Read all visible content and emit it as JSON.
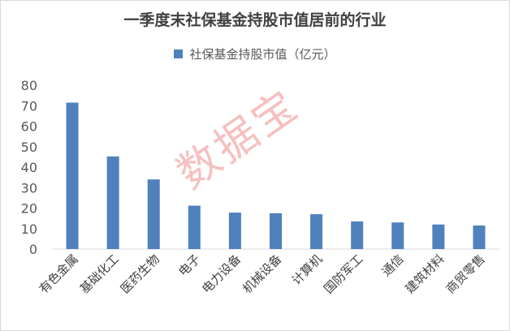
{
  "chart_data": {
    "type": "bar",
    "title": "一季度末社保基金持股市值居前的行业",
    "series": [
      {
        "name": "社保基金持股市值（亿元）",
        "color": "#4f81bd",
        "values": [
          71.5,
          45.2,
          34.0,
          21.2,
          17.8,
          17.5,
          17.0,
          13.5,
          13.0,
          12.0,
          11.5
        ]
      }
    ],
    "categories": [
      "有色金属",
      "基础化工",
      "医药生物",
      "电子",
      "电力设备",
      "机械设备",
      "计算机",
      "国防军工",
      "通信",
      "建筑材料",
      "商贸零售"
    ],
    "yticks": [
      "0",
      "10",
      "20",
      "30",
      "40",
      "50",
      "60",
      "70",
      "80"
    ],
    "ylim": [
      0,
      80
    ],
    "grid": false,
    "legend_position": "top"
  },
  "watermark": "数据宝"
}
